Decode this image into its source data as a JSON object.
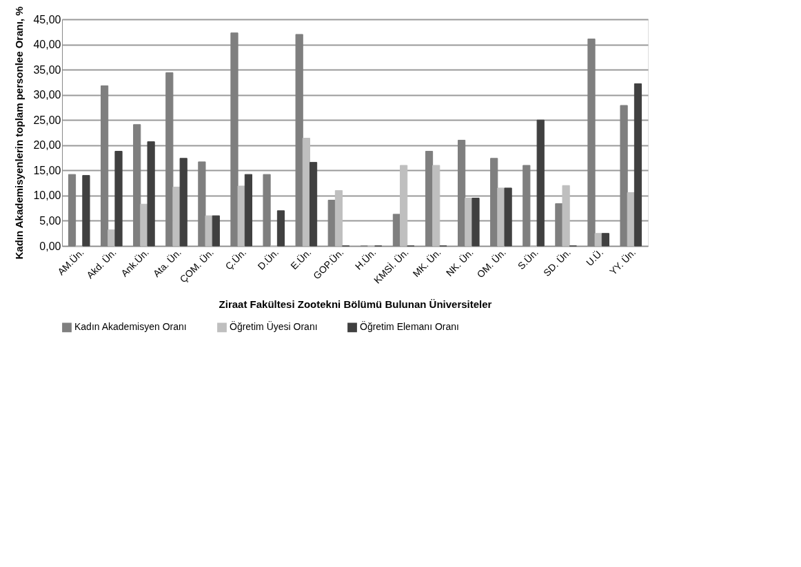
{
  "chart_data": {
    "type": "bar",
    "xlabel": "Ziraat Fakültesi Zootekni Bölümü Bulunan Üniversiteler",
    "ylabel": "Kadın Akademisyenlerin toplam personlee Oranı, %",
    "categories": [
      "AM.Ün.",
      "Akd. Ün.",
      "Ank.Ün.",
      "Ata. Ün.",
      "ÇOM. Ün.",
      "Ç.Ün.",
      "D.Ün.",
      "E.Ün.",
      "GOP.Ün.",
      "H.Ün.",
      "KMSİ. Ün.",
      "MK. Ün.",
      "NK. Ün.",
      "OM. Ün.",
      "S.Ün.",
      "SD. Ün.",
      "U.Ü.",
      "YY. Ün."
    ],
    "series": [
      {
        "name": "Kadın Akademisyen Oranı",
        "color": "#7f7f7f",
        "values": [
          14.2,
          31.8,
          24.1,
          34.4,
          16.7,
          42.3,
          14.2,
          42.0,
          9.1,
          0,
          6.3,
          18.8,
          21.0,
          17.4,
          16.0,
          8.4,
          41.1,
          27.9
        ]
      },
      {
        "name": "Öğretim Üyesi Oranı",
        "color": "#bfbfbf",
        "values": [
          0,
          3.2,
          8.3,
          11.7,
          6.0,
          11.9,
          0,
          21.4,
          11.0,
          0,
          16.0,
          16.0,
          9.5,
          11.5,
          0,
          12.0,
          2.5,
          10.6
        ]
      },
      {
        "name": "Öğretim Elemanı Oranı",
        "color": "#404040",
        "values": [
          14.0,
          18.8,
          20.7,
          17.4,
          6.0,
          14.2,
          7.0,
          16.6,
          0,
          0,
          0,
          0,
          9.5,
          11.5,
          25.0,
          0,
          2.5,
          32.2
        ]
      }
    ],
    "ylim": [
      0,
      45
    ],
    "yticks": [
      {
        "value": 0,
        "label": "0,00"
      },
      {
        "value": 5,
        "label": "5,00"
      },
      {
        "value": 10,
        "label": "10,00"
      },
      {
        "value": 15,
        "label": "15,00"
      },
      {
        "value": 20,
        "label": "20,00"
      },
      {
        "value": 25,
        "label": "25,00"
      },
      {
        "value": 30,
        "label": "30,00"
      },
      {
        "value": 35,
        "label": "35,00"
      },
      {
        "value": 40,
        "label": "40,00"
      },
      {
        "value": 45,
        "label": "45,00"
      }
    ],
    "grid": "y",
    "legend": "bottom"
  }
}
